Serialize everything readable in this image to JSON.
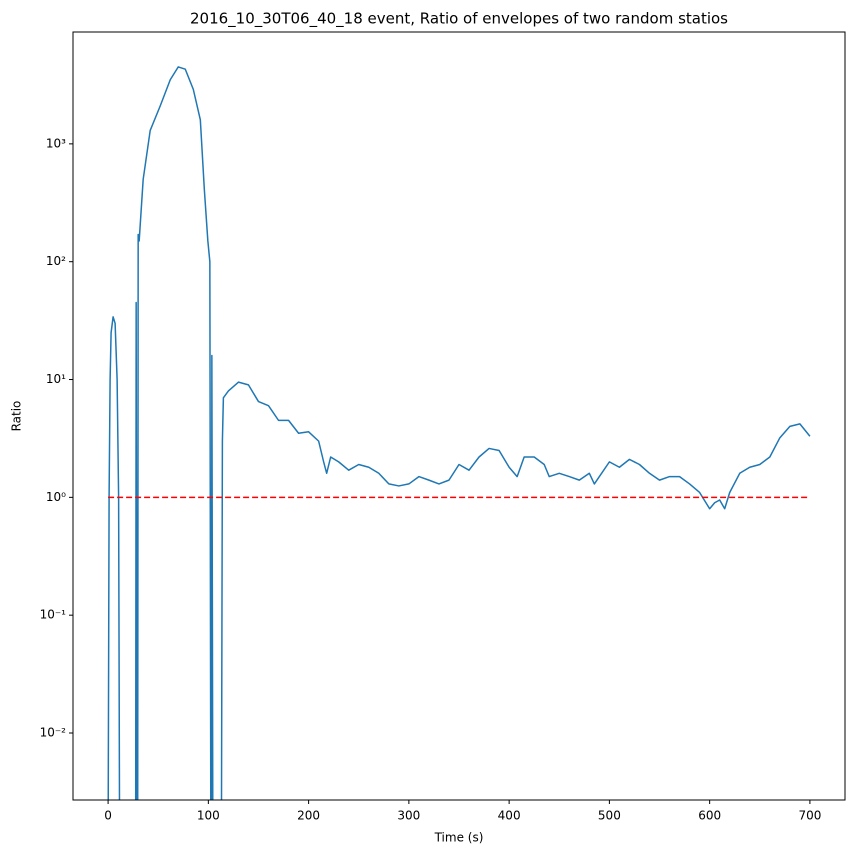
{
  "chart_data": {
    "type": "line",
    "title": "2016_10_30T06_40_18 event, Ratio of envelopes of two random statios",
    "xlabel": "Time (s)",
    "ylabel": "Ratio",
    "yscale": "log",
    "xlim": [
      -35,
      735
    ],
    "ylim": [
      0.0027,
      8900
    ],
    "xticks": [
      0,
      100,
      200,
      300,
      400,
      500,
      600,
      700
    ],
    "yticks": [
      {
        "value": 0.01,
        "label": "10⁻²"
      },
      {
        "value": 0.1,
        "label": "10⁻¹"
      },
      {
        "value": 1,
        "label": "10⁰"
      },
      {
        "value": 10,
        "label": "10¹"
      },
      {
        "value": 100,
        "label": "10²"
      },
      {
        "value": 1000,
        "label": "10³"
      }
    ],
    "series": [
      {
        "color": "#1f77b4",
        "linestyle": "solid",
        "x": [
          0,
          1,
          2,
          3,
          5,
          7,
          9,
          10.5,
          11.5,
          20,
          27.5,
          28,
          28.7,
          29,
          29.5,
          30,
          31,
          35,
          42,
          52,
          62,
          70,
          77,
          85,
          92,
          96,
          99.5,
          101.5,
          102.5,
          103,
          103.2,
          103.5,
          104.5,
          108,
          113,
          114,
          115,
          120,
          130,
          140,
          150,
          160,
          170,
          180,
          190,
          200,
          210,
          215,
          218,
          222,
          230,
          240,
          250,
          260,
          270,
          280,
          290,
          300,
          310,
          320,
          330,
          340,
          350,
          360,
          370,
          380,
          390,
          400,
          408,
          415,
          425,
          435,
          440,
          450,
          460,
          470,
          480,
          485,
          490,
          500,
          510,
          520,
          530,
          540,
          550,
          560,
          570,
          580,
          590,
          600,
          605,
          610,
          615,
          620,
          630,
          640,
          650,
          660,
          670,
          680,
          690,
          700
        ],
        "values": [
          0.001,
          1,
          10,
          25,
          34,
          30,
          10,
          1,
          0.001,
          null,
          0.001,
          45,
          0.001,
          null,
          0.001,
          170,
          150,
          500,
          1300,
          2100,
          3500,
          4500,
          4300,
          2900,
          1600,
          410,
          150,
          100,
          0.001,
          null,
          0.001,
          16,
          0.001,
          null,
          0.001,
          3,
          7,
          8,
          9.5,
          9,
          6.5,
          6,
          4.5,
          4.5,
          3.5,
          3.6,
          3,
          2,
          1.6,
          2.2,
          2,
          1.7,
          1.9,
          1.8,
          1.6,
          1.3,
          1.25,
          1.3,
          1.5,
          1.4,
          1.3,
          1.4,
          1.9,
          1.7,
          2.2,
          2.6,
          2.5,
          1.8,
          1.5,
          2.2,
          2.2,
          1.9,
          1.5,
          1.6,
          1.5,
          1.4,
          1.6,
          1.3,
          1.5,
          2,
          1.8,
          2.1,
          1.9,
          1.6,
          1.4,
          1.5,
          1.5,
          1.3,
          1.1,
          0.8,
          0.9,
          0.95,
          0.8,
          1.1,
          1.6,
          1.8,
          1.9,
          2.2,
          3.2,
          4,
          4.2,
          3.3
        ]
      },
      {
        "color": "#ff0000",
        "linestyle": "dashed",
        "x": [
          0,
          700
        ],
        "values": [
          1,
          1
        ]
      }
    ]
  }
}
